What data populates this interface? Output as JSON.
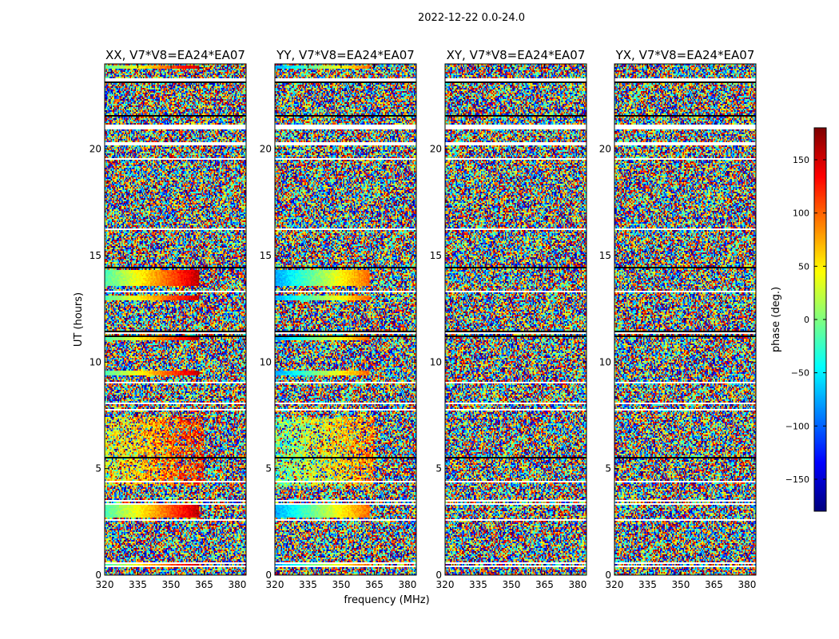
{
  "figure": {
    "suptitle": "2022-12-22 0.0-24.0",
    "xlabel": "frequency (MHz)",
    "ylabel": "UT (hours)",
    "colorbar_label": "phase (deg.)",
    "colorbar_colormap": "jet"
  },
  "chart_data": [
    {
      "type": "heatmap",
      "title": "XX, V7*V8=EA24*EA07",
      "x_ticks": [
        "320",
        "335",
        "350",
        "365",
        "380"
      ],
      "y_ticks": [
        "0",
        "5",
        "10",
        "15",
        "20"
      ],
      "xlim": [
        320,
        384
      ],
      "ylim": [
        0,
        24
      ],
      "value_range": [
        -180,
        180
      ],
      "coherent_signal": true
    },
    {
      "type": "heatmap",
      "title": "YY, V7*V8=EA24*EA07",
      "x_ticks": [
        "320",
        "335",
        "350",
        "365",
        "380"
      ],
      "y_ticks": [
        "0",
        "5",
        "10",
        "15",
        "20"
      ],
      "xlim": [
        320,
        384
      ],
      "ylim": [
        0,
        24
      ],
      "value_range": [
        -180,
        180
      ],
      "coherent_signal": true
    },
    {
      "type": "heatmap",
      "title": "XY, V7*V8=EA24*EA07",
      "x_ticks": [
        "320",
        "335",
        "350",
        "365",
        "380"
      ],
      "y_ticks": [
        "0",
        "5",
        "10",
        "15",
        "20"
      ],
      "xlim": [
        320,
        384
      ],
      "ylim": [
        0,
        24
      ],
      "value_range": [
        -180,
        180
      ],
      "coherent_signal": false
    },
    {
      "type": "heatmap",
      "title": "YX, V7*V8=EA24*EA07",
      "x_ticks": [
        "320",
        "335",
        "350",
        "365",
        "380"
      ],
      "y_ticks": [
        "0",
        "5",
        "10",
        "15",
        "20"
      ],
      "xlim": [
        320,
        384
      ],
      "ylim": [
        0,
        24
      ],
      "value_range": [
        -180,
        180
      ],
      "coherent_signal": false
    }
  ],
  "colorbar": {
    "ticks": [
      "150",
      "100",
      "50",
      "0",
      "−50",
      "−100",
      "−150"
    ],
    "tick_values": [
      150,
      100,
      50,
      0,
      -50,
      -100,
      -150
    ],
    "range": [
      -180,
      180
    ]
  },
  "time_features": {
    "blank_rows_ut": [
      0.4,
      0.55,
      2.6,
      3.35,
      3.5,
      4.4,
      7.75,
      8.05,
      9.05,
      11.35,
      13.3,
      16.25,
      19.55,
      20.25,
      21.0,
      21.1,
      23.25
    ],
    "black_rows_ut": [
      0.3,
      2.25,
      3.75,
      5.5,
      9.9,
      11.2,
      11.45,
      13.35,
      14.45,
      16.95,
      21.55,
      22.05,
      23.15
    ],
    "coherent_bands_ut": [
      [
        0.35,
        0.55
      ],
      [
        2.7,
        3.3
      ],
      [
        9.35,
        9.6
      ],
      [
        11.0,
        11.25
      ],
      [
        12.9,
        13.1
      ],
      [
        13.6,
        14.3
      ],
      [
        20.9,
        21.0
      ],
      [
        23.75,
        23.95
      ]
    ],
    "smooth_phase_ut": [
      [
        4.2,
        7.4
      ]
    ]
  }
}
